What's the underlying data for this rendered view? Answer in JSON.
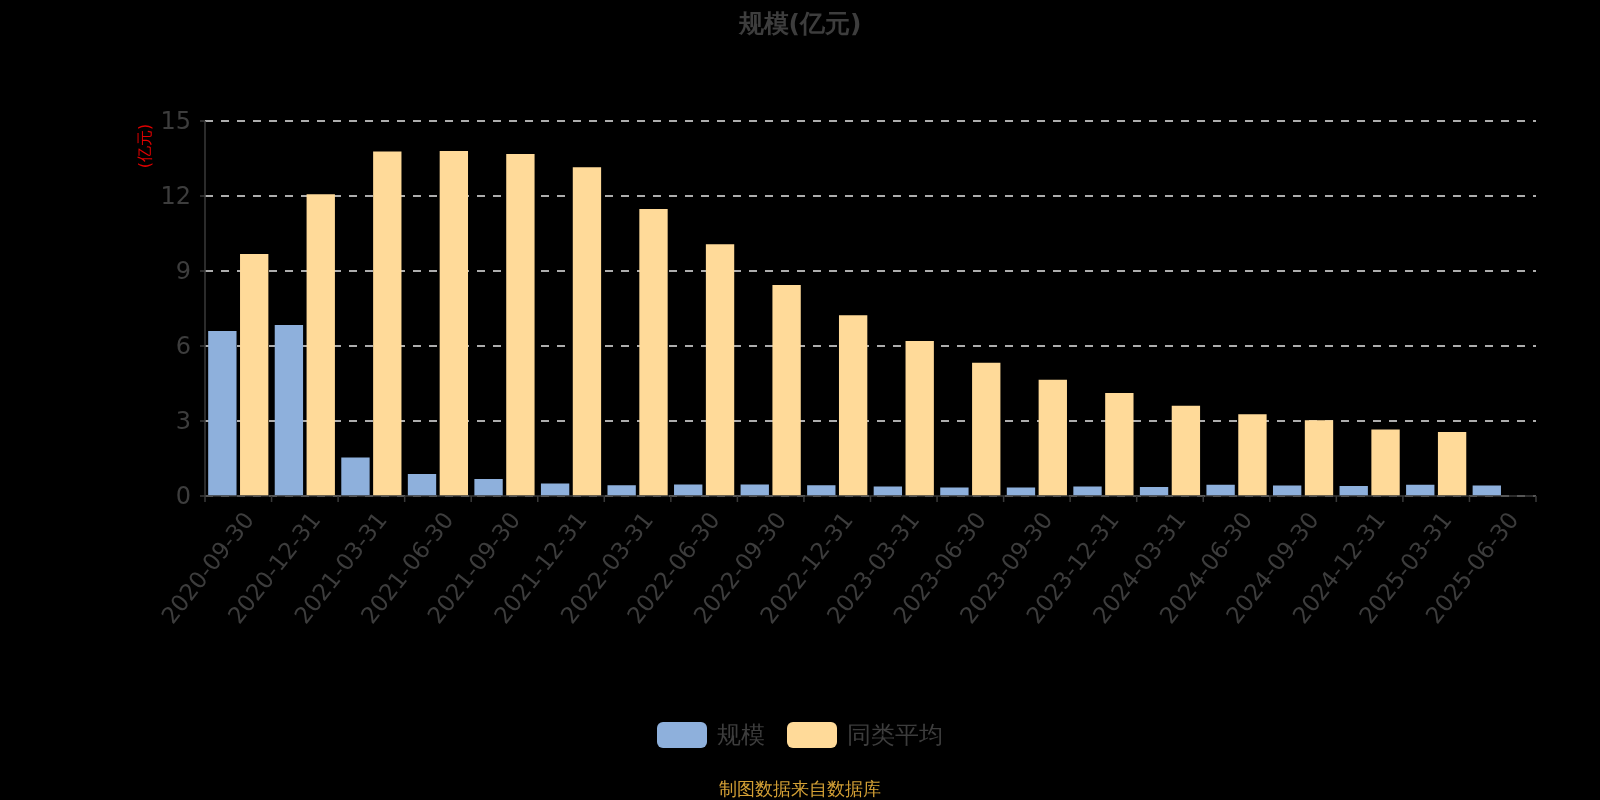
{
  "chart_data": {
    "type": "bar",
    "title": "规模(亿元)",
    "ylabel": "(亿元)",
    "categories": [
      "2020-09-30",
      "2020-12-31",
      "2021-03-31",
      "2021-06-30",
      "2021-09-30",
      "2021-12-31",
      "2022-03-31",
      "2022-06-30",
      "2022-09-30",
      "2022-12-31",
      "2023-03-31",
      "2023-06-30",
      "2023-09-30",
      "2023-12-31",
      "2024-03-31",
      "2024-06-30",
      "2024-09-30",
      "2024-12-31",
      "2025-03-31",
      "2025-06-30"
    ],
    "series": [
      {
        "name": "规模",
        "color": "#8eb0dc",
        "values": [
          6.6,
          6.84,
          1.54,
          0.88,
          0.68,
          0.5,
          0.43,
          0.46,
          0.46,
          0.43,
          0.38,
          0.34,
          0.34,
          0.38,
          0.36,
          0.45,
          0.42,
          0.4,
          0.45,
          0.42
        ]
      },
      {
        "name": "同类平均",
        "color": "#ffda99",
        "values": [
          9.68,
          12.07,
          13.78,
          13.8,
          13.68,
          13.15,
          11.48,
          10.07,
          8.44,
          7.23,
          6.2,
          5.33,
          4.65,
          4.12,
          3.61,
          3.27,
          3.03,
          2.66,
          2.56,
          null
        ]
      }
    ],
    "ylim": [
      0,
      15
    ],
    "yticks": [
      0,
      3,
      6,
      9,
      12,
      15
    ],
    "grid": "y",
    "legend": "bottom",
    "annotations": [
      "制图数据来自数据库"
    ]
  }
}
